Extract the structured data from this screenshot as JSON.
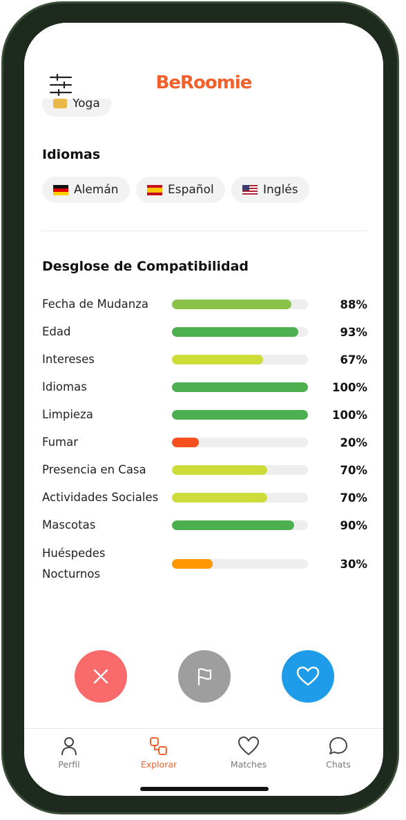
{
  "header": {
    "logo": "BeRoomie"
  },
  "interests": [
    "Yoga"
  ],
  "languages": {
    "title": "Idiomas",
    "items": [
      "Alemán",
      "Español",
      "Inglés"
    ]
  },
  "compatibility": {
    "title": "Desglose de Compatibilidad",
    "items": [
      {
        "name": "Fecha de Mudanza",
        "value": 88,
        "value_label": "88%",
        "color": "#8bc34a"
      },
      {
        "name": "Edad",
        "value": 93,
        "value_label": "93%",
        "color": "#4caf50"
      },
      {
        "name": "Intereses",
        "value": 67,
        "value_label": "67%",
        "color": "#cddc39"
      },
      {
        "name": "Idiomas",
        "value": 100,
        "value_label": "100%",
        "color": "#4caf50"
      },
      {
        "name": "Limpieza",
        "value": 100,
        "value_label": "100%",
        "color": "#4caf50"
      },
      {
        "name": "Fumar",
        "value": 20,
        "value_label": "20%",
        "color": "#f4511e"
      },
      {
        "name": "Presencia en Casa",
        "value": 70,
        "value_label": "70%",
        "color": "#cddc39"
      },
      {
        "name": "Actividades Sociales",
        "value": 70,
        "value_label": "70%",
        "color": "#cddc39"
      },
      {
        "name": "Mascotas",
        "value": 90,
        "value_label": "90%",
        "color": "#4caf50"
      },
      {
        "name": "Huéspedes Nocturnos",
        "value": 30,
        "value_label": "30%",
        "color": "#ff9800"
      }
    ]
  },
  "nav": [
    {
      "label": "Perfil"
    },
    {
      "label": "Explorar"
    },
    {
      "label": "Matches"
    },
    {
      "label": "Chats"
    }
  ]
}
